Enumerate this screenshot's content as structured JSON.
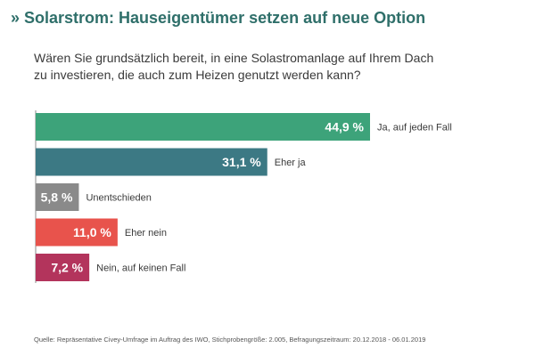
{
  "header": {
    "title_prefix": "»",
    "title": "Solarstrom: Hauseigentümer setzen auf neue Option",
    "subtitle_line1": "Wären Sie grundsätzlich bereit, in eine Solastromanlage auf Ihrem Dach",
    "subtitle_line2": "zu investieren, die auch zum Heizen genutzt werden kann?"
  },
  "chart_data": {
    "type": "bar",
    "orientation": "horizontal",
    "categories": [
      "Ja, auf jeden Fall",
      "Eher ja",
      "Unentschieden",
      "Eher nein",
      "Nein, auf keinen Fall"
    ],
    "values": [
      44.9,
      31.1,
      5.8,
      11.0,
      7.2
    ],
    "value_labels": [
      "44,9 %",
      "31,1 %",
      "5,8 %",
      "11,0 %",
      "7,2 %"
    ],
    "colors": [
      "#3da37a",
      "#3c7984",
      "#8a8a8a",
      "#e8534c",
      "#b3345c"
    ],
    "unit": "%",
    "xlim": [
      0,
      60
    ],
    "grid": false
  },
  "footer": {
    "source": "Quelle: Repräsentative Civey-Umfrage im Auftrag des IWO, Stichprobengröße: 2.005, Befragungszeitraum: 20.12.2018 - 06.01.2019"
  }
}
